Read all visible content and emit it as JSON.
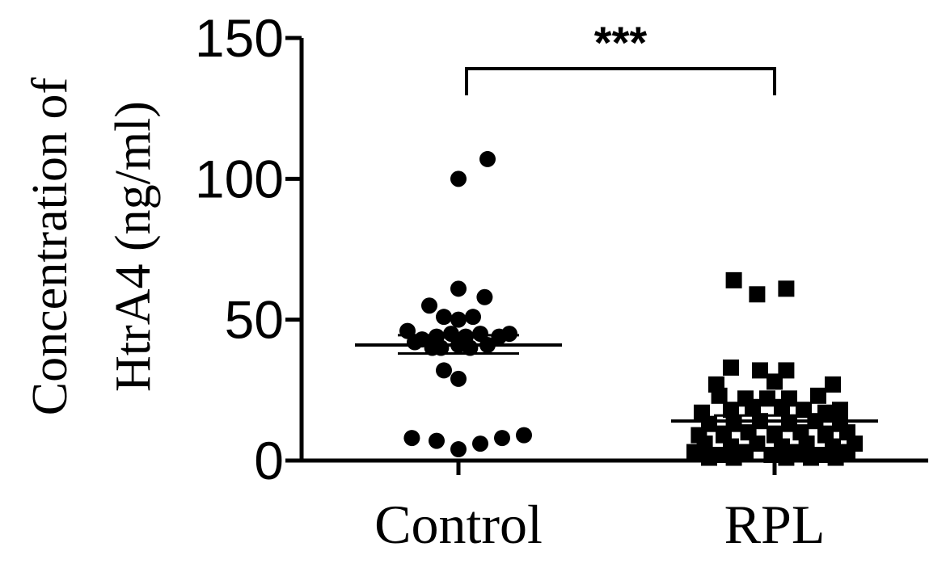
{
  "chart_data": {
    "type": "scatter",
    "ylabel_lines": [
      "Concentration of",
      "HtrA4  (ng/ml)"
    ],
    "ylim": [
      0,
      150
    ],
    "y_ticks": [
      "0",
      "50",
      "100",
      "150"
    ],
    "categories": [
      "Control",
      "RPL"
    ],
    "significance": "***",
    "series": [
      {
        "category": "Control",
        "marker": "circle",
        "mean": 41,
        "sem_upper": 44.5,
        "sem_lower": 38,
        "points": [
          {
            "x": 0.2,
            "y": 107
          },
          {
            "x": 0.0,
            "y": 100
          },
          {
            "x": 0.0,
            "y": 61
          },
          {
            "x": -0.2,
            "y": 55
          },
          {
            "x": 0.18,
            "y": 58
          },
          {
            "x": -0.1,
            "y": 51
          },
          {
            "x": 0.0,
            "y": 50
          },
          {
            "x": 0.1,
            "y": 51
          },
          {
            "x": -0.35,
            "y": 46
          },
          {
            "x": -0.25,
            "y": 43
          },
          {
            "x": -0.15,
            "y": 44
          },
          {
            "x": -0.05,
            "y": 45
          },
          {
            "x": 0.05,
            "y": 44
          },
          {
            "x": 0.15,
            "y": 45
          },
          {
            "x": 0.28,
            "y": 44
          },
          {
            "x": 0.35,
            "y": 45
          },
          {
            "x": -0.3,
            "y": 42
          },
          {
            "x": -0.18,
            "y": 40
          },
          {
            "x": 0.0,
            "y": 41
          },
          {
            "x": 0.2,
            "y": 41
          },
          {
            "x": -0.12,
            "y": 40
          },
          {
            "x": 0.08,
            "y": 40
          },
          {
            "x": -0.1,
            "y": 32
          },
          {
            "x": 0.0,
            "y": 29
          },
          {
            "x": -0.32,
            "y": 8
          },
          {
            "x": -0.15,
            "y": 7
          },
          {
            "x": 0.0,
            "y": 4
          },
          {
            "x": 0.15,
            "y": 6
          },
          {
            "x": 0.3,
            "y": 8
          },
          {
            "x": 0.45,
            "y": 9
          }
        ]
      },
      {
        "category": "RPL",
        "marker": "square",
        "mean": 14,
        "sem_upper": 16,
        "sem_lower": 12,
        "points": [
          {
            "x": -0.28,
            "y": 64
          },
          {
            "x": -0.12,
            "y": 59
          },
          {
            "x": 0.08,
            "y": 61
          },
          {
            "x": -0.3,
            "y": 33
          },
          {
            "x": -0.1,
            "y": 32
          },
          {
            "x": 0.08,
            "y": 32
          },
          {
            "x": -0.4,
            "y": 27
          },
          {
            "x": 0.0,
            "y": 28
          },
          {
            "x": 0.4,
            "y": 27
          },
          {
            "x": -0.38,
            "y": 23
          },
          {
            "x": -0.2,
            "y": 22
          },
          {
            "x": -0.05,
            "y": 22
          },
          {
            "x": 0.1,
            "y": 22
          },
          {
            "x": 0.3,
            "y": 23
          },
          {
            "x": 0.45,
            "y": 18
          },
          {
            "x": -0.5,
            "y": 17
          },
          {
            "x": -0.3,
            "y": 18
          },
          {
            "x": -0.15,
            "y": 19
          },
          {
            "x": 0.05,
            "y": 19
          },
          {
            "x": 0.2,
            "y": 18
          },
          {
            "x": 0.35,
            "y": 17
          },
          {
            "x": -0.45,
            "y": 13
          },
          {
            "x": -0.28,
            "y": 13
          },
          {
            "x": -0.1,
            "y": 14
          },
          {
            "x": 0.1,
            "y": 13
          },
          {
            "x": 0.28,
            "y": 14
          },
          {
            "x": 0.45,
            "y": 13
          },
          {
            "x": -0.52,
            "y": 9
          },
          {
            "x": -0.35,
            "y": 9
          },
          {
            "x": -0.18,
            "y": 10
          },
          {
            "x": 0.0,
            "y": 9
          },
          {
            "x": 0.18,
            "y": 10
          },
          {
            "x": 0.35,
            "y": 9
          },
          {
            "x": 0.5,
            "y": 10
          },
          {
            "x": -0.48,
            "y": 6
          },
          {
            "x": -0.3,
            "y": 5
          },
          {
            "x": -0.12,
            "y": 6
          },
          {
            "x": 0.05,
            "y": 5
          },
          {
            "x": 0.22,
            "y": 6
          },
          {
            "x": 0.4,
            "y": 5
          },
          {
            "x": 0.55,
            "y": 6
          },
          {
            "x": -0.55,
            "y": 3
          },
          {
            "x": -0.38,
            "y": 2
          },
          {
            "x": -0.2,
            "y": 3
          },
          {
            "x": -0.02,
            "y": 2
          },
          {
            "x": 0.15,
            "y": 3
          },
          {
            "x": 0.32,
            "y": 2
          },
          {
            "x": 0.5,
            "y": 3
          },
          {
            "x": -0.28,
            "y": 1
          },
          {
            "x": 0.08,
            "y": 1
          },
          {
            "x": 0.25,
            "y": 1
          },
          {
            "x": -0.45,
            "y": 1
          },
          {
            "x": 0.42,
            "y": 1
          }
        ]
      }
    ]
  }
}
